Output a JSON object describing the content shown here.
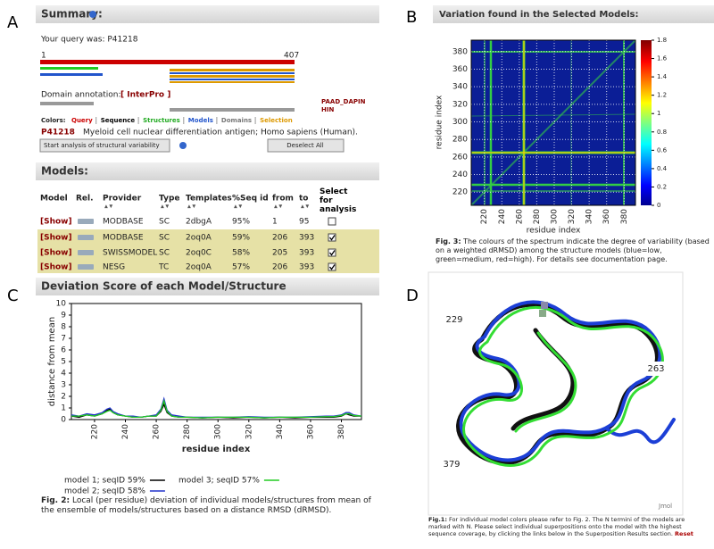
{
  "panel_labels": [
    "A",
    "B",
    "C",
    "D"
  ],
  "summary": {
    "title": "Summary:",
    "query": "Your query was: P41218",
    "seq_start": "1",
    "seq_end": "407",
    "domain_annotation": "Domain annotation:",
    "interpro": "[ InterPro ]",
    "domains": [
      "PAAD_DAPIN",
      "HIN"
    ],
    "colors_label": "Colors:",
    "color_keys": [
      {
        "text": "Query",
        "color": "#cc0000"
      },
      {
        "text": "Sequence",
        "color": "#000000"
      },
      {
        "text": "Structures",
        "color": "#22aa22"
      },
      {
        "text": "Models",
        "color": "#2255cc"
      },
      {
        "text": "Domains",
        "color": "#777777"
      },
      {
        "text": "Selection",
        "color": "#dd9900"
      }
    ],
    "protein_id": "P41218",
    "protein_desc": "Myeloid cell nuclear differentiation antigen; Homo sapiens (Human).",
    "button_start": "Start analysis of structural variability",
    "button_deselect": "Deselect All"
  },
  "models": {
    "title": "Models:",
    "headers": [
      "Model",
      "Rel.",
      "Provider",
      "Type",
      "Templates",
      "%Seq id",
      "from",
      "to",
      "Select for analysis"
    ],
    "rows": [
      [
        "[Show]",
        "MODBASE",
        "SC",
        "2dbgA",
        "95%",
        "1",
        "95"
      ],
      [
        "[Show]",
        "MODBASE",
        "SC",
        "2oq0A",
        "59%",
        "206",
        "393"
      ],
      [
        "[Show]",
        "SWISSMODEL",
        "SC",
        "2oq0C",
        "58%",
        "205",
        "393"
      ],
      [
        "[Show]",
        "NESG",
        "TC",
        "2oq0A",
        "57%",
        "206",
        "393"
      ]
    ],
    "selected": [
      false,
      true,
      true,
      true
    ]
  },
  "variation": {
    "title": "Variation found in the Selected Models:",
    "xlabel": "residue index",
    "ylabel": "residue index",
    "xlim": [
      205,
      393
    ],
    "ylim": [
      205,
      393
    ],
    "xticks": [
      220,
      240,
      260,
      280,
      300,
      320,
      340,
      360,
      380
    ],
    "yticks": [
      220,
      240,
      260,
      280,
      300,
      320,
      340,
      360,
      380
    ],
    "clim": [
      0,
      1.8
    ],
    "cticks": [
      0,
      0.2,
      0.4,
      0.6,
      0.8,
      1,
      1.2,
      1.4,
      1.6,
      1.8
    ],
    "caption_label": "Fig. 3:",
    "caption": "The colours of the spectrum indicate the degree of variability (based on a weighted dRMSD) among the structure models (blue=low, green=medium, red=high). For details see documentation page."
  },
  "chart_data": {
    "type": "line",
    "title": "Deviation Score of each Model/Structure",
    "xlabel": "residue index",
    "ylabel": "distance from mean",
    "x": [
      205,
      210,
      215,
      220,
      225,
      228,
      230,
      232,
      235,
      240,
      245,
      250,
      255,
      260,
      263,
      265,
      267,
      270,
      275,
      280,
      290,
      300,
      310,
      320,
      330,
      340,
      350,
      360,
      370,
      375,
      380,
      383,
      385,
      388,
      393
    ],
    "series": [
      {
        "name": "model 1; seqID 59%",
        "color": "#000000",
        "values": [
          0.3,
          0.2,
          0.4,
          0.3,
          0.5,
          0.8,
          0.9,
          0.6,
          0.4,
          0.3,
          0.2,
          0.2,
          0.3,
          0.3,
          0.7,
          1.3,
          0.6,
          0.3,
          0.2,
          0.2,
          0.15,
          0.2,
          0.15,
          0.2,
          0.15,
          0.2,
          0.15,
          0.2,
          0.2,
          0.2,
          0.3,
          0.5,
          0.4,
          0.3,
          0.3
        ]
      },
      {
        "name": "model 2; seqID 58%",
        "color": "#2233cc",
        "values": [
          0.4,
          0.3,
          0.5,
          0.4,
          0.6,
          0.9,
          1.0,
          0.7,
          0.5,
          0.3,
          0.3,
          0.2,
          0.3,
          0.4,
          0.9,
          1.8,
          0.8,
          0.4,
          0.3,
          0.2,
          0.2,
          0.2,
          0.2,
          0.25,
          0.2,
          0.2,
          0.2,
          0.25,
          0.3,
          0.3,
          0.4,
          0.6,
          0.6,
          0.4,
          0.3
        ]
      },
      {
        "name": "model 3; seqID 57%",
        "color": "#22cc22",
        "values": [
          0.3,
          0.3,
          0.4,
          0.3,
          0.5,
          0.7,
          0.8,
          0.6,
          0.4,
          0.3,
          0.2,
          0.2,
          0.3,
          0.3,
          0.8,
          1.6,
          0.7,
          0.3,
          0.2,
          0.2,
          0.15,
          0.2,
          0.2,
          0.2,
          0.15,
          0.2,
          0.2,
          0.2,
          0.25,
          0.25,
          0.35,
          0.5,
          0.5,
          0.35,
          0.3
        ]
      }
    ],
    "xlim": [
      205,
      393
    ],
    "ylim": [
      0,
      10
    ],
    "xticks": [
      220,
      240,
      260,
      280,
      300,
      320,
      340,
      360,
      380
    ],
    "yticks": [
      0,
      1,
      2,
      3,
      4,
      5,
      6,
      7,
      8,
      9,
      10
    ],
    "caption_label": "Fig. 2:",
    "caption": "Local (per residue) deviation of individual models/structures from mean of the ensemble of models/structures based on a distance RMSD (dRMSD)."
  },
  "structure": {
    "labels": [
      "229",
      "263",
      "379"
    ],
    "viewer": "Jmol",
    "caption_label": "Fig.1:",
    "caption": "For individual model colors please refer to Fig. 2. The N termini of the models are marked with N. Please select individual superpositions onto the model with the highest sequence coverage, by clicking the links below in the Superposition Results section.",
    "reset": "Reset"
  }
}
